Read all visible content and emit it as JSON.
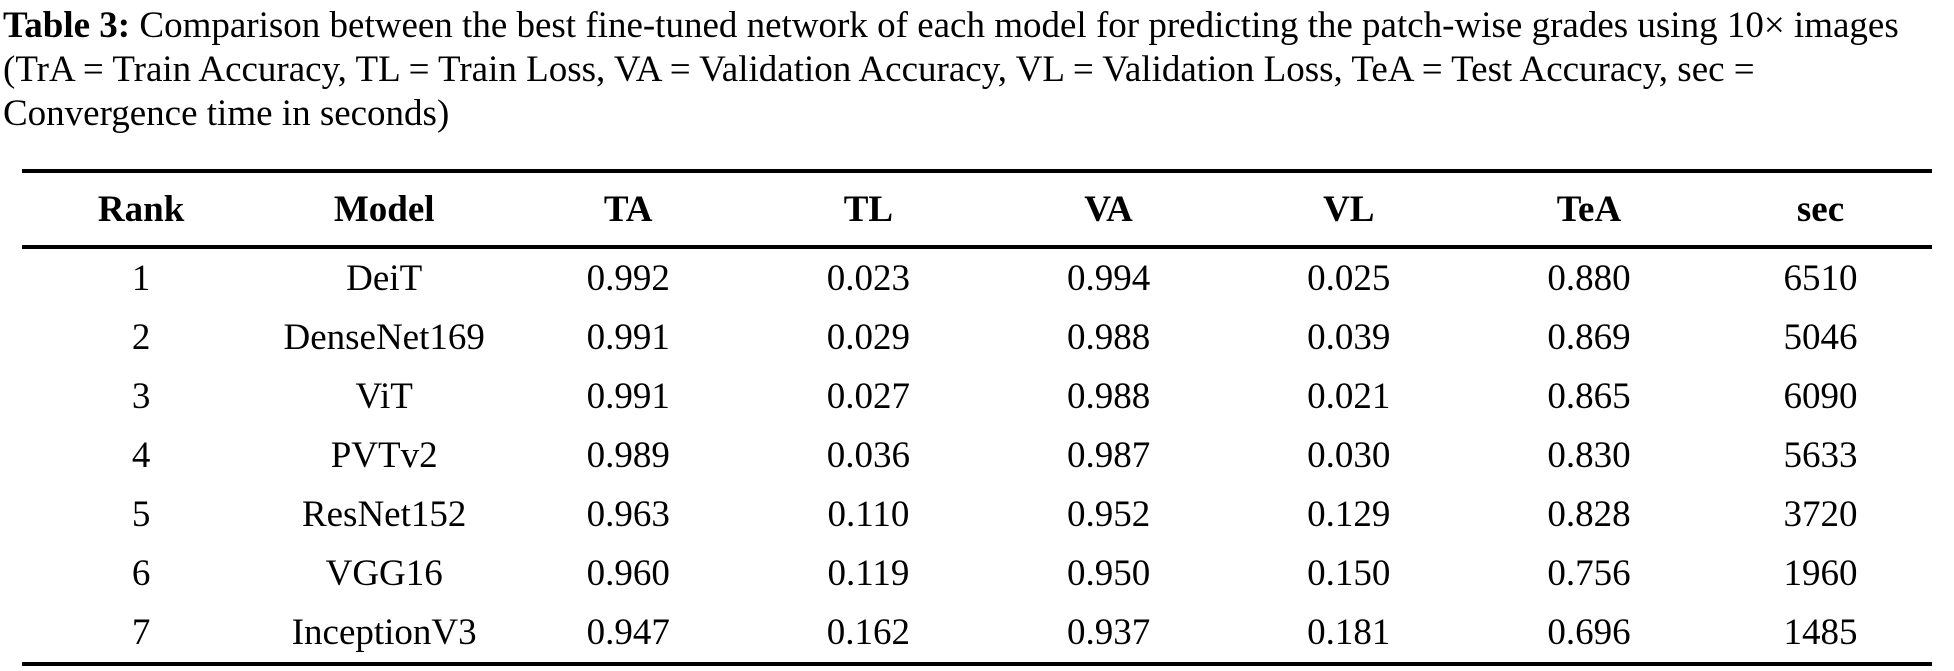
{
  "caption": {
    "label": "Table 3:",
    "text": "Comparison between the best fine-tuned network of each model for predicting the patch-wise grades using 10× images (TrA = Train Accuracy, TL = Train Loss, VA = Validation Accuracy, VL = Validation Loss, TeA = Test Accuracy, sec = Convergence time in seconds)"
  },
  "table": {
    "columns": [
      "Rank",
      "Model",
      "TA",
      "TL",
      "VA",
      "VL",
      "TeA",
      "sec"
    ],
    "rows": [
      [
        "1",
        "DeiT",
        "0.992",
        "0.023",
        "0.994",
        "0.025",
        "0.880",
        "6510"
      ],
      [
        "2",
        "DenseNet169",
        "0.991",
        "0.029",
        "0.988",
        "0.039",
        "0.869",
        "5046"
      ],
      [
        "3",
        "ViT",
        "0.991",
        "0.027",
        "0.988",
        "0.021",
        "0.865",
        "6090"
      ],
      [
        "4",
        "PVTv2",
        "0.989",
        "0.036",
        "0.987",
        "0.030",
        "0.830",
        "5633"
      ],
      [
        "5",
        "ResNet152",
        "0.963",
        "0.110",
        "0.952",
        "0.129",
        "0.828",
        "3720"
      ],
      [
        "6",
        "VGG16",
        "0.960",
        "0.119",
        "0.950",
        "0.150",
        "0.756",
        "1960"
      ],
      [
        "7",
        "InceptionV3",
        "0.947",
        "0.162",
        "0.937",
        "0.181",
        "0.696",
        "1485"
      ]
    ]
  }
}
